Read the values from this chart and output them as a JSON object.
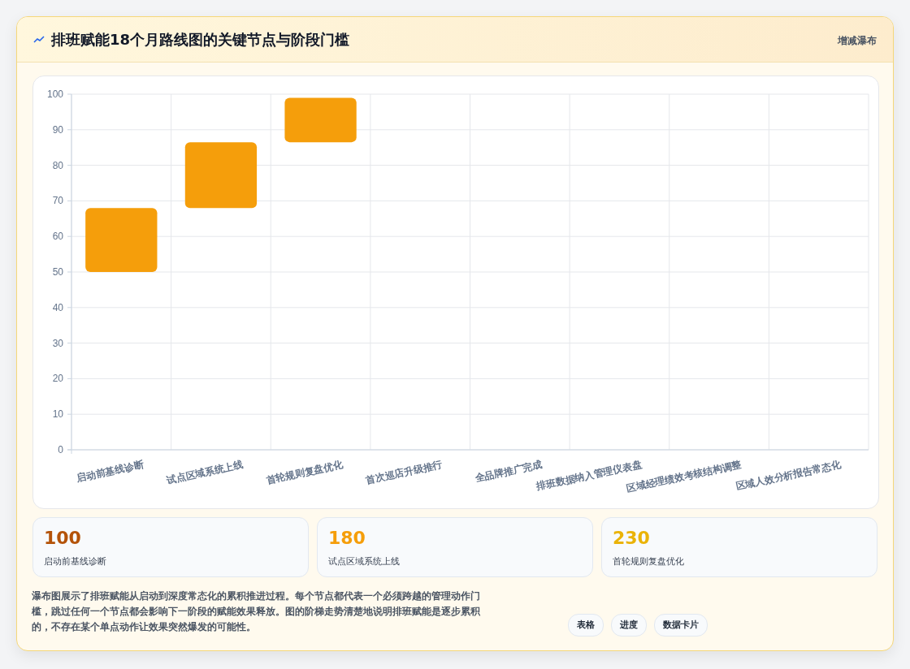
{
  "chart_data": [
    {
      "type": "bar",
      "title": "排班赋能18个月路线图的关键节点与阶段门槛",
      "categories": [
        "启动前基线诊断",
        "试点区域系统上线",
        "首轮规则复盘优化",
        "首次巡店升级推行",
        "全品牌推广完成",
        "排班数据纳入管理仪表盘",
        "区域经理绩效考核结构调整",
        "区域人效分析报告常态化"
      ],
      "values": [
        18,
        18.5,
        12.5,
        null,
        null,
        null,
        null,
        null
      ],
      "base": [
        50,
        68,
        86.5,
        null,
        null,
        null,
        null,
        null
      ],
      "color": "#f59e0b",
      "ylim": [
        0,
        100
      ],
      "yticks": [
        0,
        10,
        20,
        30,
        40,
        50,
        60,
        70,
        80,
        90,
        100
      ],
      "grid": true,
      "annotations": [
        "增减瀑布",
        "瀑布图展示了排班赋能从启动到深度常态化的累积推进过程。每个节点都代表一个必须跨越的管理动作门槛，跳过任何一个节点都会影响下一阶段的赋能效果释放。图的阶梯走势清楚地说明排班赋能是逐步累积的，不存在某个单点动作让效果突然爆发的可能性。",
        "表格",
        "进度",
        "数据卡片"
      ]
    },
    {
      "type": "other",
      "categories": [
        "启动前基线诊断",
        "试点区域系统上线",
        "首轮规则复盘优化"
      ],
      "values": [
        100,
        180,
        230
      ],
      "data_labels": true
    }
  ]
}
